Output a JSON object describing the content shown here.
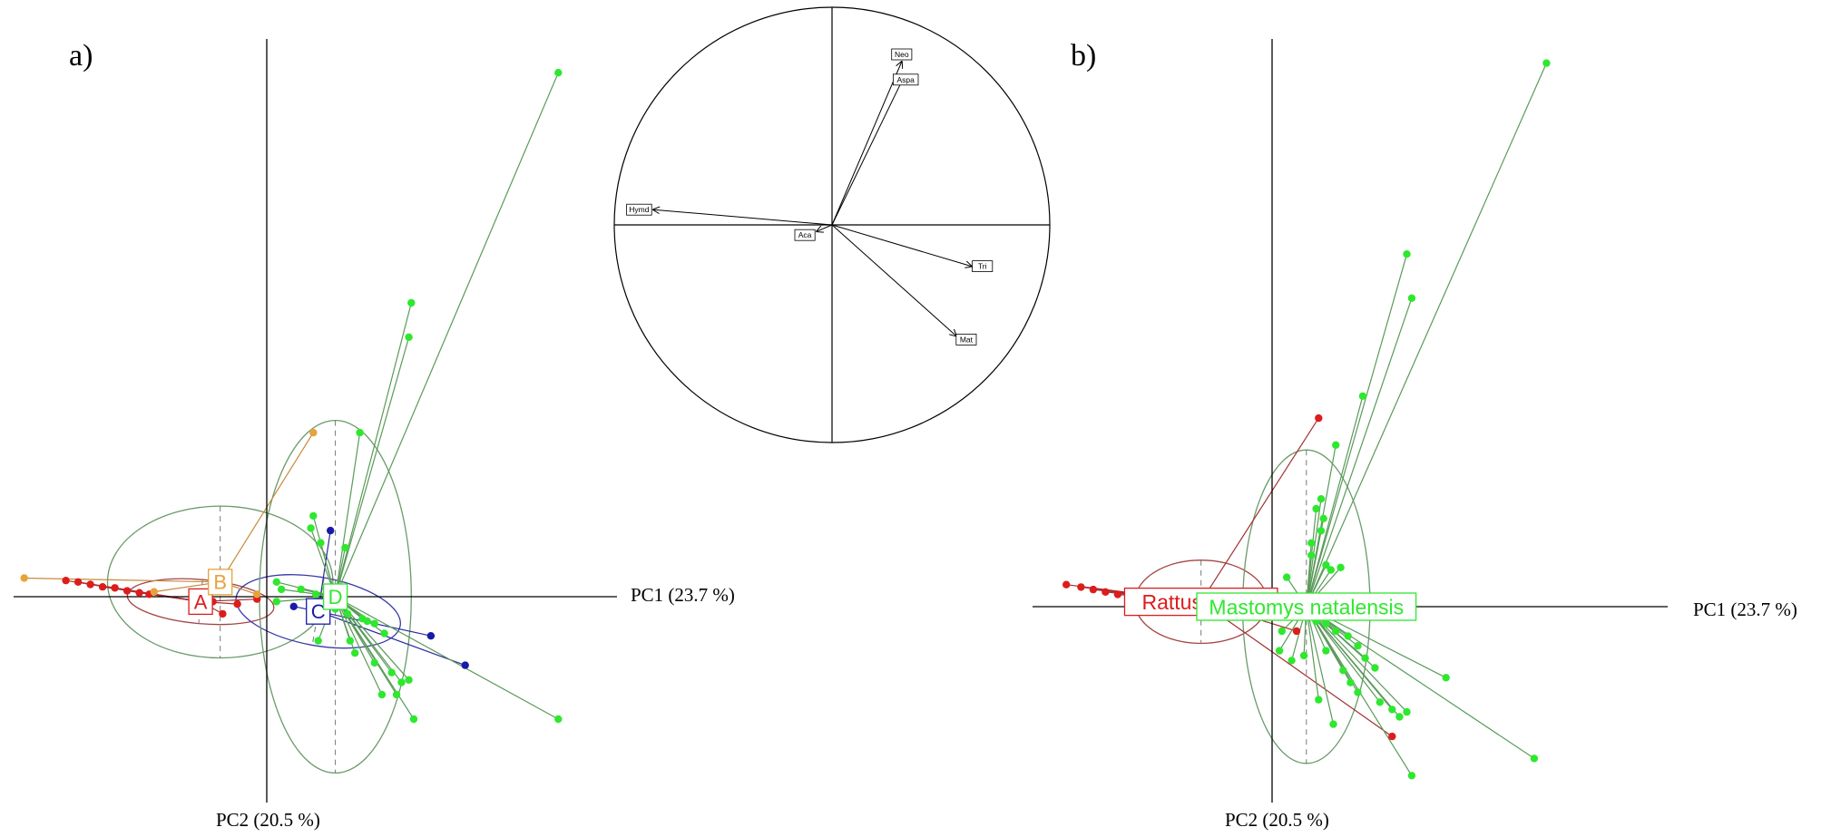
{
  "chart_data": [
    {
      "type": "scatter",
      "panel_label": "a)",
      "xlabel": "PC1 (23.7 %)",
      "ylabel": "PC2 (20.5 %)",
      "xlim": [
        -5.2,
        7.1
      ],
      "ylim": [
        -4.1,
        11.4
      ],
      "grid": false,
      "groups": [
        {
          "name": "A",
          "color": "#dd1c1c",
          "centroid": [
            -1.35,
            -0.1
          ],
          "ellipse": {
            "rx": 1.5,
            "ry": 0.45,
            "angle": 5
          },
          "points": [
            [
              -4.1,
              0.33
            ],
            [
              -3.85,
              0.3
            ],
            [
              -3.6,
              0.25
            ],
            [
              -3.35,
              0.2
            ],
            [
              -3.1,
              0.18
            ],
            [
              -2.85,
              0.12
            ],
            [
              -2.6,
              0.08
            ],
            [
              -2.4,
              0.05
            ],
            [
              -1.1,
              -0.1
            ],
            [
              -0.6,
              -0.15
            ],
            [
              -0.9,
              -0.35
            ],
            [
              -0.2,
              -0.05
            ]
          ]
        },
        {
          "name": "B",
          "color": "#e8a23a",
          "centroid": [
            -0.95,
            0.3
          ],
          "ellipse": {
            "rx": 2.3,
            "ry": 1.55,
            "angle": 0
          },
          "points": [
            [
              -4.95,
              0.38
            ],
            [
              0.95,
              3.35
            ],
            [
              -2.3,
              0.1
            ],
            [
              -0.2,
              0.05
            ]
          ]
        },
        {
          "name": "C",
          "color": "#1a1aa8",
          "centroid": [
            1.05,
            -0.3
          ],
          "ellipse": {
            "rx": 1.7,
            "ry": 0.7,
            "angle": 10
          },
          "points": [
            [
              1.3,
              1.35
            ],
            [
              3.35,
              -0.8
            ],
            [
              4.05,
              -1.4
            ],
            [
              1.55,
              -0.05
            ],
            [
              0.55,
              -0.2
            ]
          ]
        },
        {
          "name": "D",
          "color": "#2ee82e",
          "centroid": [
            1.4,
            0.0
          ],
          "ellipse": {
            "rx": 1.55,
            "ry": 3.6,
            "angle": 0
          },
          "points": [
            [
              5.95,
              10.7
            ],
            [
              2.95,
              6.0
            ],
            [
              2.9,
              5.3
            ],
            [
              1.9,
              3.35
            ],
            [
              0.95,
              1.65
            ],
            [
              0.9,
              1.4
            ],
            [
              1.1,
              1.1
            ],
            [
              1.6,
              1.0
            ],
            [
              0.2,
              0.3
            ],
            [
              0.3,
              0.15
            ],
            [
              0.2,
              -0.1
            ],
            [
              0.7,
              0.15
            ],
            [
              1.0,
              0.05
            ],
            [
              1.15,
              -0.15
            ],
            [
              1.4,
              -0.25
            ],
            [
              1.65,
              -0.35
            ],
            [
              1.95,
              -0.45
            ],
            [
              2.2,
              -0.55
            ],
            [
              2.4,
              -0.75
            ],
            [
              1.7,
              -0.9
            ],
            [
              1.8,
              -1.15
            ],
            [
              2.2,
              -1.35
            ],
            [
              2.55,
              -1.55
            ],
            [
              2.75,
              -1.75
            ],
            [
              2.35,
              -2.0
            ],
            [
              2.9,
              -1.7
            ],
            [
              2.65,
              -2.0
            ],
            [
              3.0,
              -2.5
            ],
            [
              5.95,
              -2.5
            ],
            [
              1.05,
              -0.9
            ],
            [
              2.05,
              -0.5
            ],
            [
              1.2,
              -0.3
            ]
          ]
        }
      ]
    },
    {
      "type": "circle",
      "title": "",
      "variables": [
        {
          "name": "Neo",
          "x": 0.32,
          "y": 0.75
        },
        {
          "name": "Aspa",
          "x": 0.33,
          "y": 0.68
        },
        {
          "name": "Hymd",
          "x": -0.82,
          "y": 0.07
        },
        {
          "name": "Aca",
          "x": -0.07,
          "y": -0.03
        },
        {
          "name": "Tri",
          "x": 0.64,
          "y": -0.19
        },
        {
          "name": "Mat",
          "x": 0.57,
          "y": -0.51
        }
      ]
    },
    {
      "type": "scatter",
      "panel_label": "b)",
      "xlabel": "PC1 (23.7 %)",
      "ylabel": "PC2 (20.5 %)",
      "xlim": [
        -5.2,
        7.1
      ],
      "ylim": [
        -4.1,
        11.4
      ],
      "grid": false,
      "groups": [
        {
          "name": "Rattus rattus",
          "color": "#dd1c1c",
          "centroid": [
            -1.45,
            0.1
          ],
          "ellipse": {
            "rx": 1.35,
            "ry": 0.85,
            "angle": 0
          },
          "points": [
            [
              -4.2,
              0.45
            ],
            [
              -3.9,
              0.4
            ],
            [
              -3.65,
              0.35
            ],
            [
              -3.4,
              0.3
            ],
            [
              -3.15,
              0.25
            ],
            [
              -2.9,
              0.2
            ],
            [
              -2.65,
              0.15
            ],
            [
              0.95,
              3.85
            ],
            [
              0.4,
              0.2
            ],
            [
              0.5,
              -0.5
            ],
            [
              2.45,
              -2.65
            ],
            [
              0.6,
              -0.05
            ]
          ]
        },
        {
          "name": "Mastomys natalensis",
          "color": "#2ee82e",
          "centroid": [
            0.7,
            0.0
          ],
          "ellipse": {
            "rx": 1.3,
            "ry": 3.2,
            "angle": 0
          },
          "points": [
            [
              5.6,
              11.1
            ],
            [
              2.75,
              7.2
            ],
            [
              2.85,
              6.3
            ],
            [
              1.85,
              4.3
            ],
            [
              1.3,
              3.3
            ],
            [
              1.0,
              2.2
            ],
            [
              0.9,
              2.0
            ],
            [
              1.05,
              1.8
            ],
            [
              1.0,
              1.55
            ],
            [
              0.8,
              1.3
            ],
            [
              0.8,
              1.05
            ],
            [
              1.1,
              0.85
            ],
            [
              1.2,
              0.75
            ],
            [
              1.4,
              0.8
            ],
            [
              0.3,
              0.6
            ],
            [
              0.25,
              0.2
            ],
            [
              0.2,
              -0.5
            ],
            [
              0.15,
              -0.9
            ],
            [
              0.4,
              -1.1
            ],
            [
              0.65,
              -1.0
            ],
            [
              0.9,
              -0.3
            ],
            [
              1.1,
              -0.35
            ],
            [
              1.3,
              -0.5
            ],
            [
              1.55,
              -0.6
            ],
            [
              1.75,
              -0.8
            ],
            [
              1.9,
              -1.05
            ],
            [
              2.1,
              -1.25
            ],
            [
              1.6,
              -1.55
            ],
            [
              1.75,
              -1.75
            ],
            [
              2.2,
              -1.95
            ],
            [
              2.45,
              -2.1
            ],
            [
              2.6,
              -2.25
            ],
            [
              2.75,
              -2.15
            ],
            [
              3.55,
              -1.45
            ],
            [
              5.35,
              -3.1
            ],
            [
              2.85,
              -3.45
            ],
            [
              1.25,
              -2.4
            ],
            [
              0.95,
              -1.9
            ],
            [
              1.45,
              -1.3
            ],
            [
              1.1,
              -0.9
            ]
          ]
        }
      ]
    }
  ]
}
